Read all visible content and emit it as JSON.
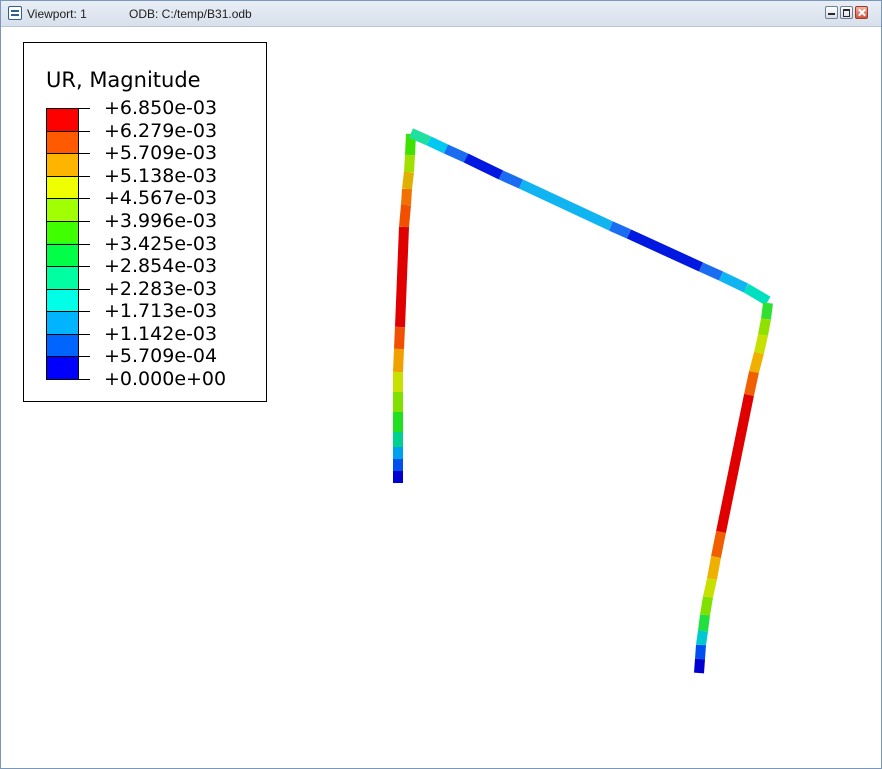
{
  "window": {
    "viewport_label": "Viewport: 1",
    "odb_label": "ODB: C:/temp/B31.odb",
    "controls": {
      "minimize": "minimize-icon",
      "maximize": "maximize-icon",
      "close": "close-icon"
    }
  },
  "legend": {
    "title": "UR, Magnitude",
    "labels": [
      "+6.850e-03",
      "+6.279e-03",
      "+5.709e-03",
      "+5.138e-03",
      "+4.567e-03",
      "+3.996e-03",
      "+3.425e-03",
      "+2.854e-03",
      "+2.283e-03",
      "+1.713e-03",
      "+1.142e-03",
      "+5.709e-04",
      "+0.000e+00"
    ],
    "colors": [
      "#ff0000",
      "#ff5a00",
      "#ffb400",
      "#f0ff00",
      "#a0ff00",
      "#40ff00",
      "#00ff46",
      "#00ffa0",
      "#00ffe6",
      "#00b4ff",
      "#0064ff",
      "#0000ff"
    ]
  }
}
